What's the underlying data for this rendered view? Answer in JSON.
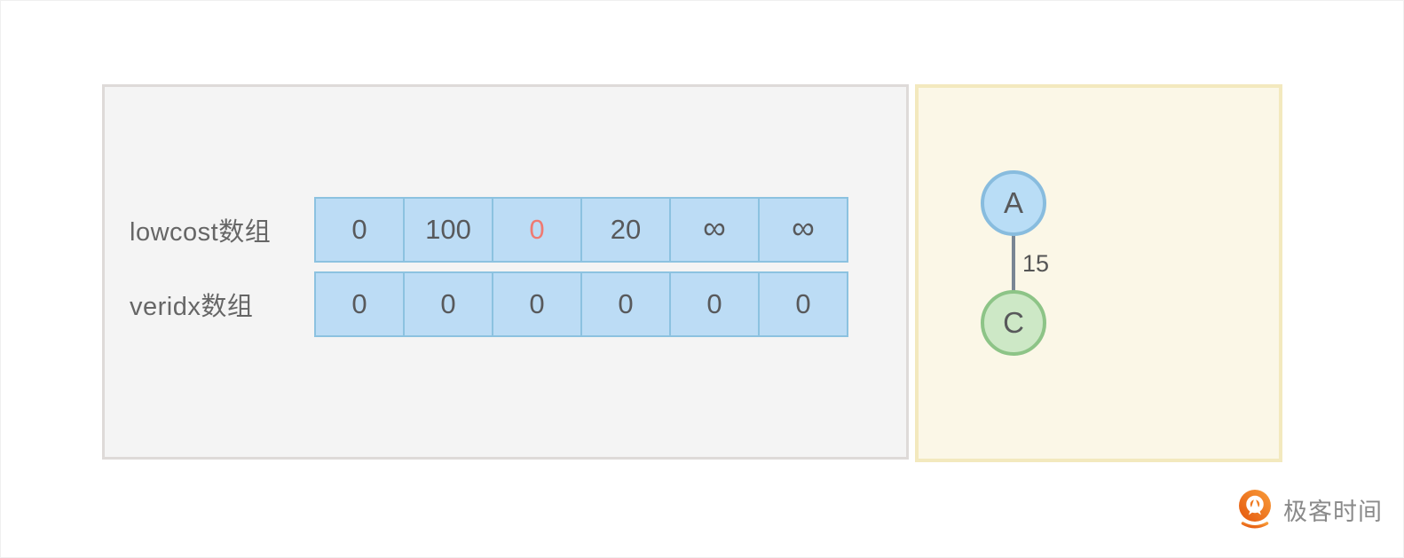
{
  "array_panel": {
    "rows": [
      {
        "label": "lowcost数组",
        "values": [
          "0",
          "100",
          "0",
          "20",
          "∞",
          "∞"
        ],
        "highlight_index": 2
      },
      {
        "label": "veridx数组",
        "values": [
          "0",
          "0",
          "0",
          "0",
          "0",
          "0"
        ],
        "highlight_index": -1
      }
    ],
    "colors": {
      "panel_fill": "#f4f4f4",
      "panel_border": "#dedad8",
      "label_text": "#666666",
      "cell_fill": "#bcdcf5",
      "cell_border": "#8cc2e0",
      "cell_text": "#58595b",
      "highlight_text": "#ef7a72"
    }
  },
  "graph_panel": {
    "colors": {
      "panel_fill": "#fbf7e7",
      "panel_border": "#f3e9be"
    },
    "nodes": [
      {
        "id": "A",
        "label": "A",
        "fill": "#b9ddf6",
        "border": "#88bcde"
      },
      {
        "id": "C",
        "label": "C",
        "fill": "#cde8c6",
        "border": "#8dc487"
      }
    ],
    "edge": {
      "from": "A",
      "to": "C",
      "weight": "15",
      "color": "#7a8694"
    }
  },
  "branding": {
    "logo_text": "极客时间",
    "logo_gradient_start": "#e4570e",
    "logo_gradient_end": "#f99d3a",
    "text_color": "#8a8a8a"
  }
}
